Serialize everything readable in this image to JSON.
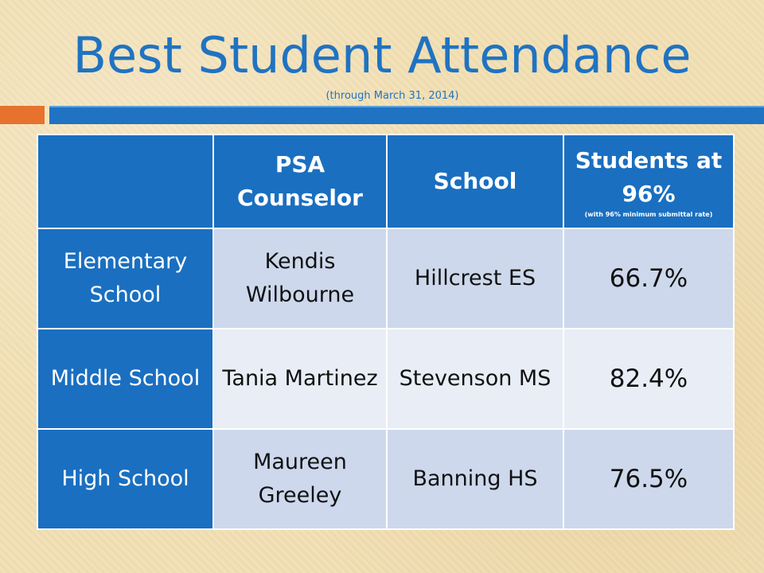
{
  "title": "Best Student Attendance",
  "subtitle": "(through March 31, 2014)",
  "colors": {
    "title_blue": "#1f73c2",
    "header_blue": "#1a6fc0",
    "accent_orange": "#e6722e",
    "highlight_red": "#e6191b"
  },
  "table": {
    "headers": [
      "",
      "PSA Counselor",
      "School",
      "Students at 96%"
    ],
    "header_note": "(with 96% minimum submittal rate)",
    "rows": [
      {
        "level": "Elementary School",
        "counselor": "Kendis Wilbourne",
        "school": "Hillcrest ES",
        "value": "66.7%",
        "highlight": true
      },
      {
        "level": "Middle School",
        "counselor": "Tania Martinez",
        "school": "Stevenson MS",
        "value": "82.4%",
        "highlight": false
      },
      {
        "level": "High School",
        "counselor": "Maureen Greeley",
        "school": "Banning HS",
        "value": "76.5%",
        "highlight": false
      }
    ]
  }
}
